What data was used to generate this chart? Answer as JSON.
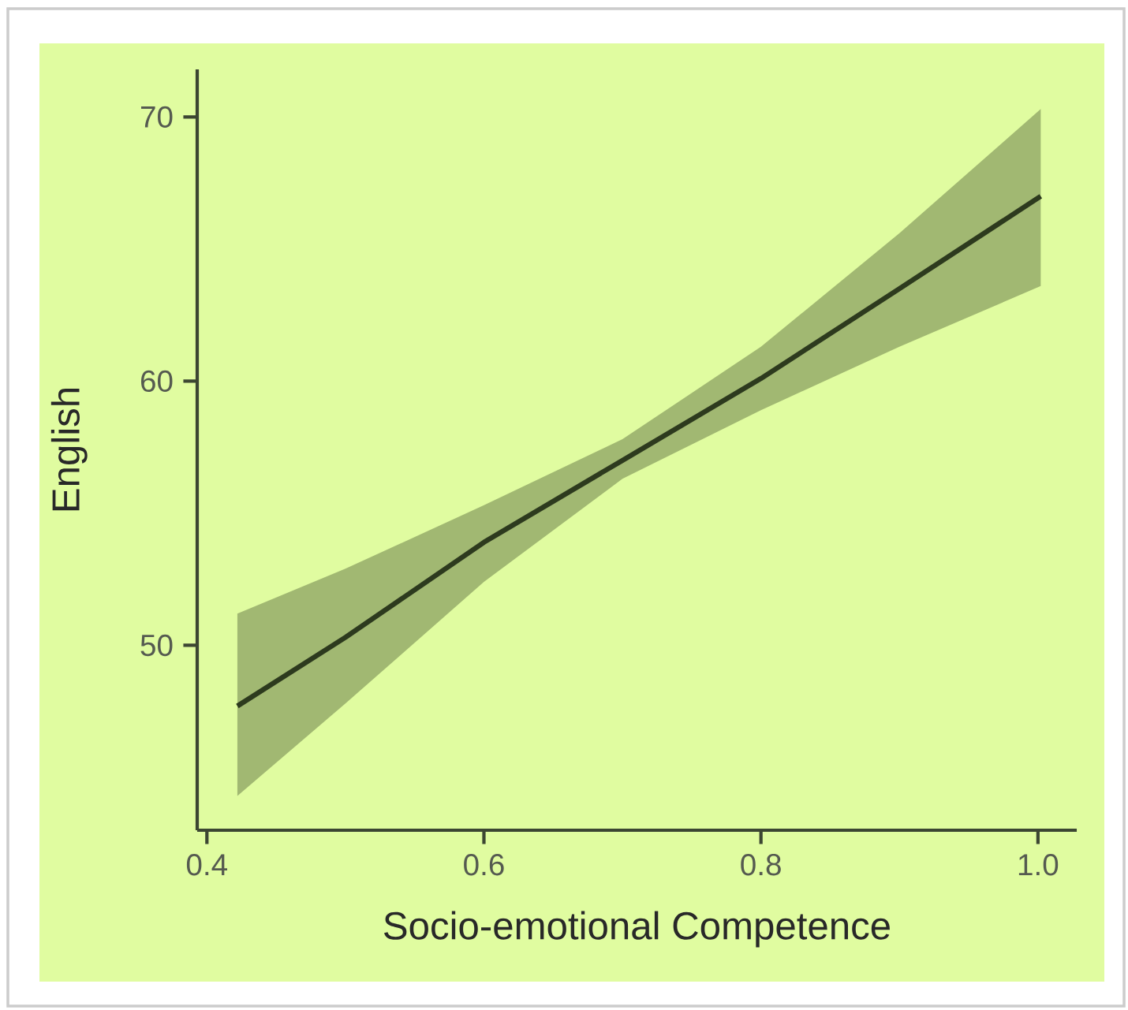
{
  "chart_data": {
    "type": "line",
    "xlabel": "Socio-emotional Competence",
    "ylabel": "English",
    "xlim": [
      0.393,
      1.028
    ],
    "ylim": [
      43.0,
      71.8
    ],
    "xticks": [
      0.4,
      0.6,
      0.8,
      {
        "value": 1.0,
        "label": "1.0"
      }
    ],
    "yticks": [
      50,
      60,
      70
    ],
    "series": [
      {
        "color": "#2d3a1e",
        "x": [
          0.422,
          0.5,
          0.6,
          0.7,
          0.8,
          0.9,
          1.002
        ],
        "values": [
          47.7,
          50.3,
          53.9,
          57.0,
          60.1,
          63.5,
          67.0
        ],
        "lower": [
          44.3,
          47.8,
          52.4,
          56.3,
          58.9,
          61.3,
          63.6
        ],
        "upper": [
          51.2,
          52.9,
          55.3,
          57.8,
          61.3,
          65.6,
          70.3
        ]
      }
    ],
    "grid": false,
    "marker": "none",
    "line_style": "solid"
  }
}
